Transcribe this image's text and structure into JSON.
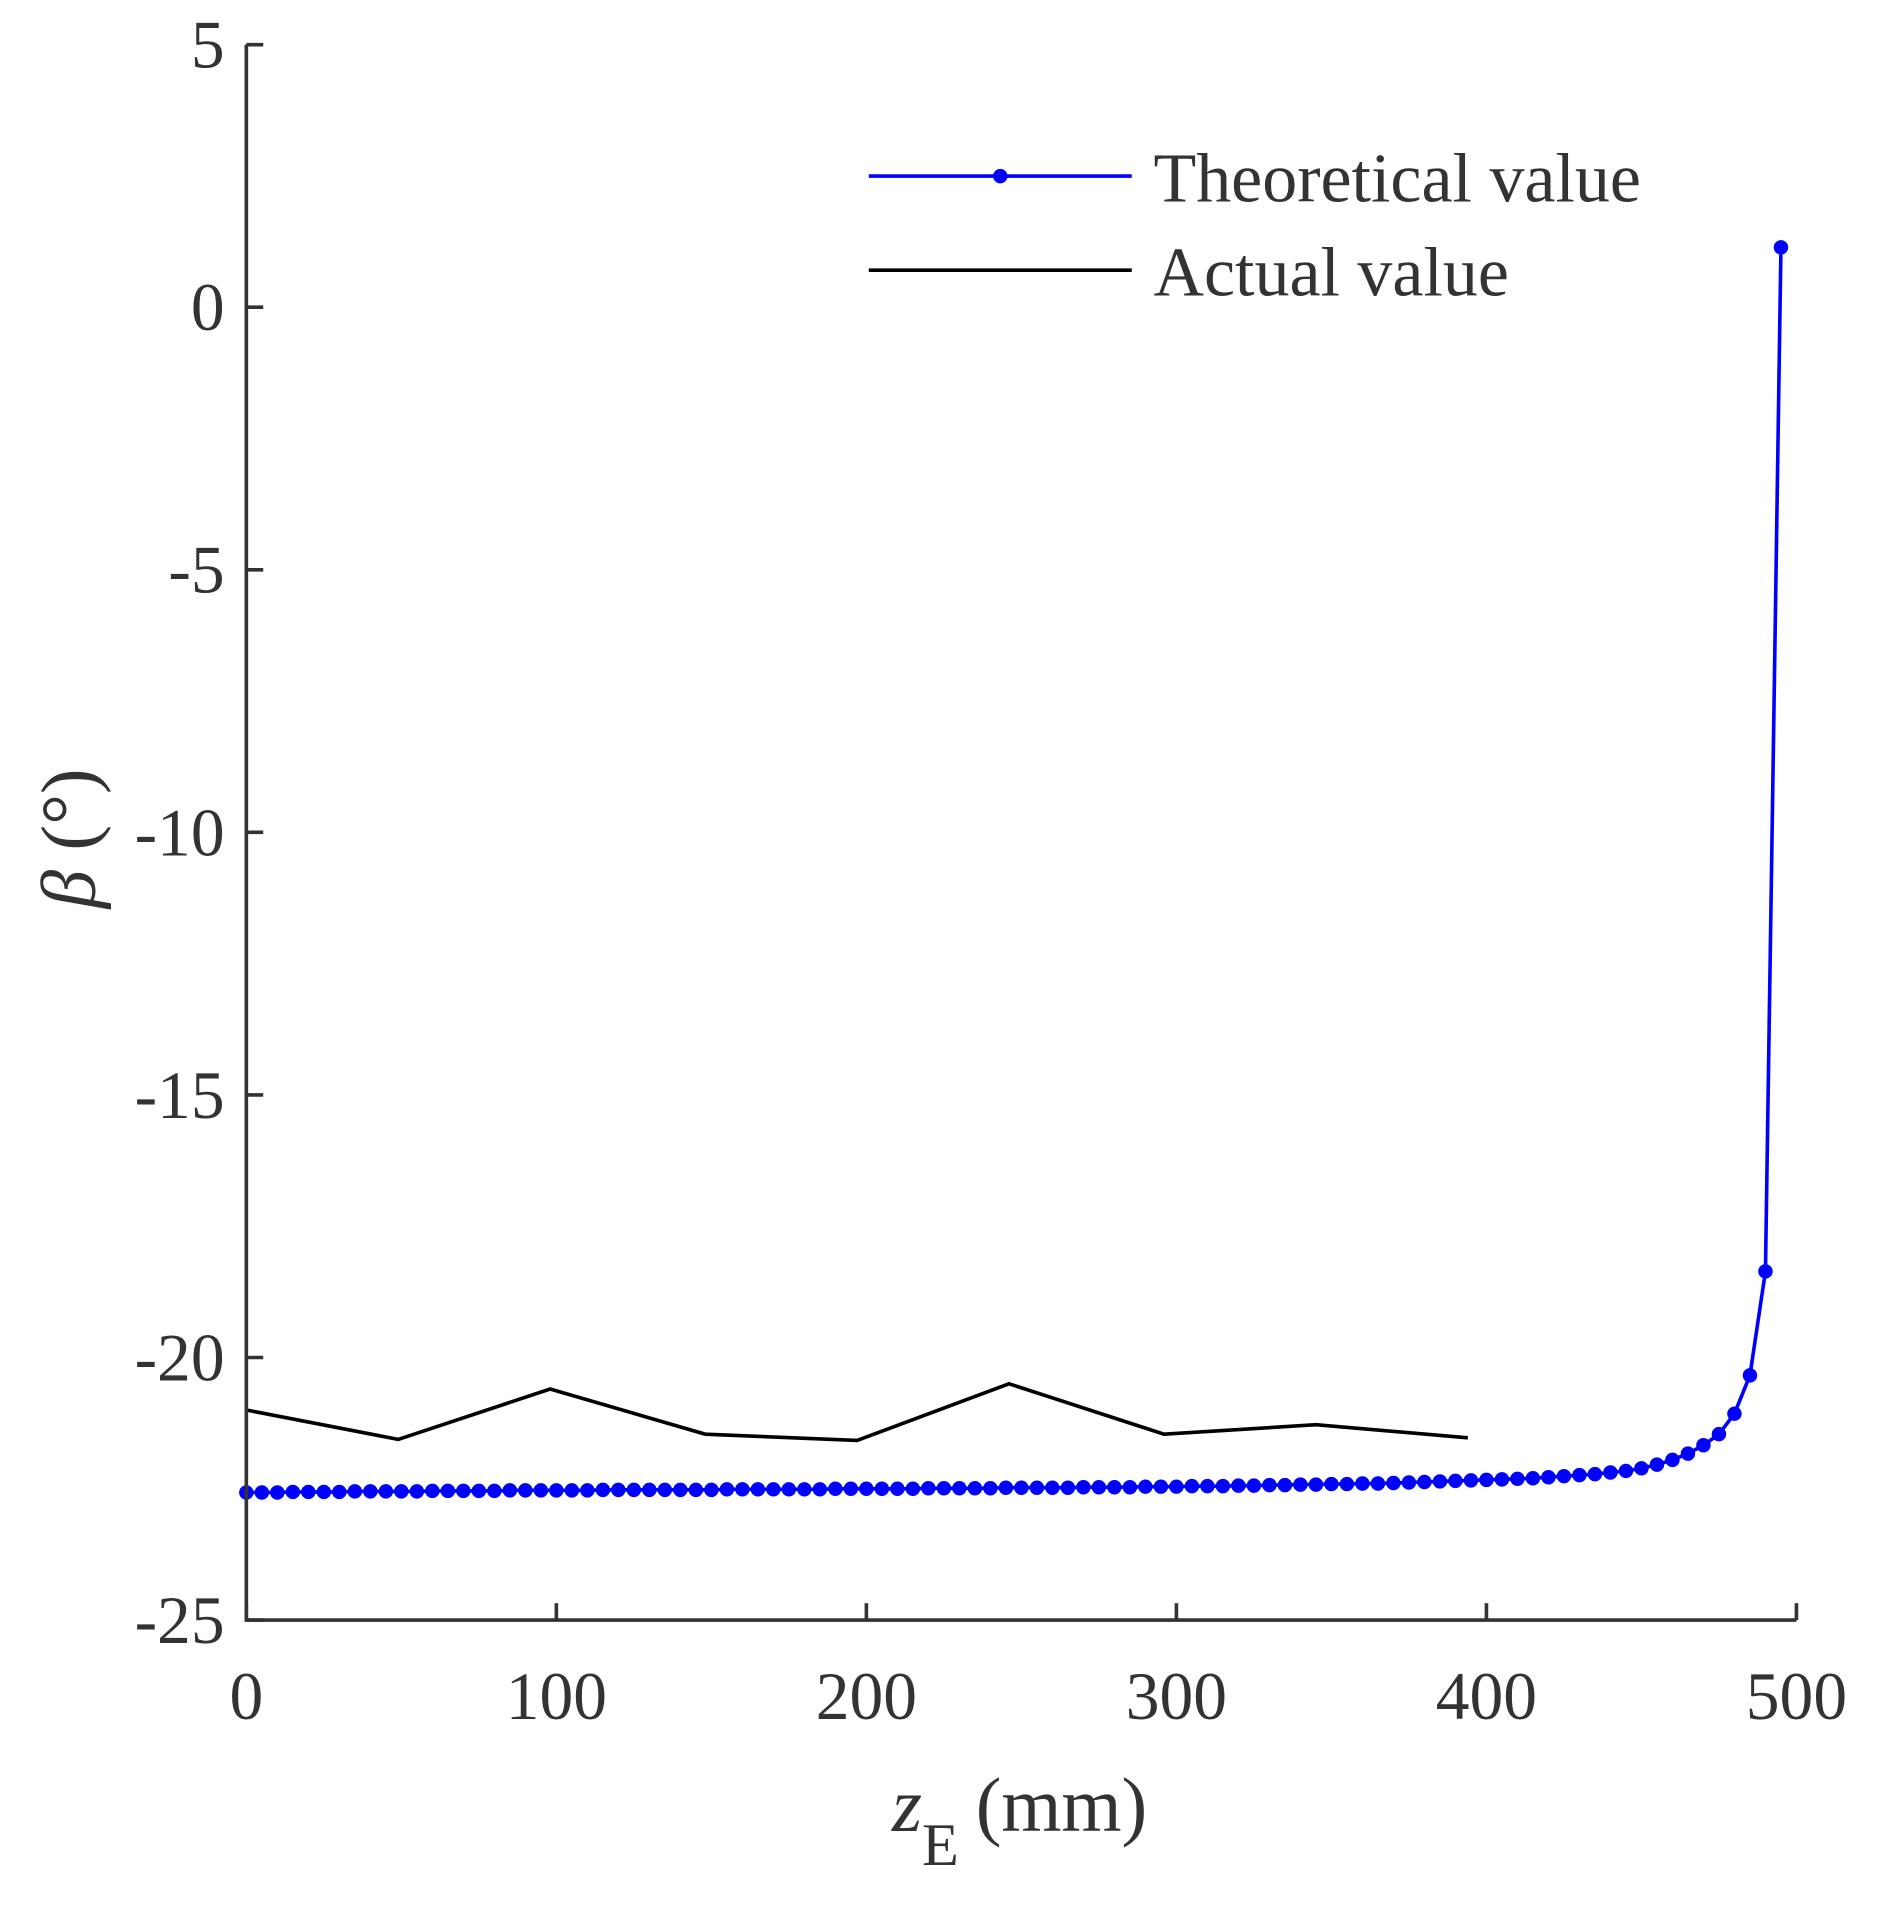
{
  "chart_data": {
    "type": "line",
    "title": "",
    "xlabel": "z",
    "xlabel_sub": "E",
    "xlabel_unit": "(mm)",
    "ylabel": "β",
    "ylabel_unit": "(°)",
    "xlim": [
      0,
      500
    ],
    "ylim": [
      -25,
      5
    ],
    "xticks": [
      0,
      100,
      200,
      300,
      400,
      500
    ],
    "xtick_labels": [
      "0",
      "100",
      "200",
      "300",
      "400",
      "500"
    ],
    "yticks": [
      5,
      0,
      -5,
      -10,
      -15,
      -20,
      -25
    ],
    "ytick_labels": [
      "5",
      "0",
      "-5",
      "-10",
      "-15",
      "-20",
      "-25"
    ],
    "grid": false,
    "legend_position": "top-right",
    "series": [
      {
        "name": "Theoretical value",
        "color": "#0000ff",
        "marker": "dot",
        "x_start": 0,
        "x_step": 5,
        "values": [
          -22.57,
          -22.57,
          -22.57,
          -22.56,
          -22.56,
          -22.56,
          -22.56,
          -22.55,
          -22.55,
          -22.55,
          -22.55,
          -22.55,
          -22.54,
          -22.54,
          -22.54,
          -22.54,
          -22.54,
          -22.53,
          -22.53,
          -22.53,
          -22.53,
          -22.53,
          -22.53,
          -22.52,
          -22.52,
          -22.52,
          -22.52,
          -22.52,
          -22.52,
          -22.52,
          -22.52,
          -22.51,
          -22.51,
          -22.51,
          -22.51,
          -22.51,
          -22.51,
          -22.51,
          -22.5,
          -22.5,
          -22.5,
          -22.5,
          -22.5,
          -22.5,
          -22.49,
          -22.49,
          -22.49,
          -22.49,
          -22.49,
          -22.48,
          -22.48,
          -22.48,
          -22.48,
          -22.48,
          -22.47,
          -22.47,
          -22.47,
          -22.47,
          -22.46,
          -22.46,
          -22.46,
          -22.45,
          -22.45,
          -22.45,
          -22.44,
          -22.44,
          -22.43,
          -22.43,
          -22.42,
          -22.42,
          -22.41,
          -22.41,
          -22.4,
          -22.4,
          -22.39,
          -22.38,
          -22.37,
          -22.36,
          -22.35,
          -22.34,
          -22.33,
          -22.32,
          -22.31,
          -22.3,
          -22.28,
          -22.26,
          -22.24,
          -22.22,
          -22.19,
          -22.16,
          -22.11,
          -22.04,
          -21.95,
          -21.83,
          -21.67,
          -21.46,
          -21.07,
          -20.34,
          -18.36,
          1.14
        ]
      },
      {
        "name": "Actual value",
        "color": "#000000",
        "marker": "none",
        "x": [
          0,
          49,
          98,
          148,
          197,
          246,
          296,
          345,
          394
        ],
        "values": [
          -21.0,
          -21.56,
          -20.6,
          -21.46,
          -21.58,
          -20.5,
          -21.46,
          -21.28,
          -21.53
        ]
      }
    ]
  }
}
